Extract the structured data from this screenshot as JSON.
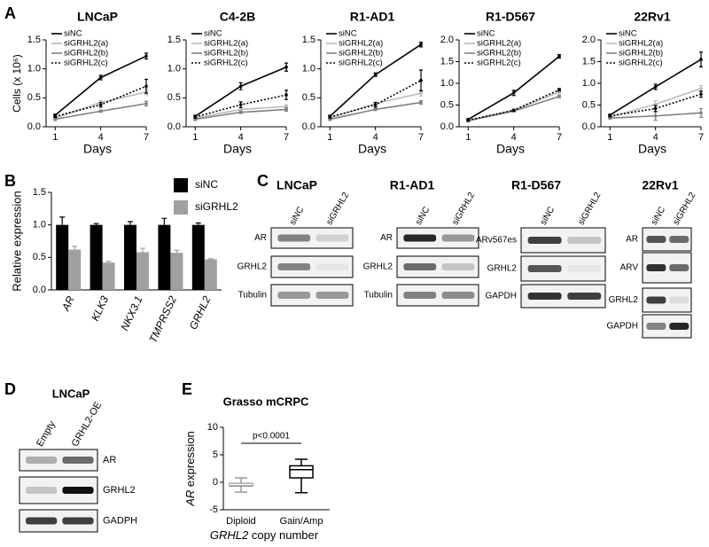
{
  "panel_labels": [
    "A",
    "B",
    "C",
    "D",
    "E"
  ],
  "chart_data": [
    {
      "type": "line",
      "title": "LNCaP",
      "ylabel": "Cells (x 10⁶)",
      "xlabel": "Days",
      "x": [
        1,
        4,
        7
      ],
      "xlim": [
        0.4,
        7
      ],
      "xticks": [
        1,
        4,
        7
      ],
      "ylim": [
        0,
        1.5
      ],
      "yticks": [
        {
          "value": 0,
          "label": "0.0"
        },
        {
          "value": 0.5,
          "label": "0.5"
        },
        {
          "value": 1,
          "label": "1.0"
        },
        {
          "value": 1.5,
          "label": "1.5"
        }
      ],
      "series": [
        {
          "name": "siNC",
          "color": "#000000",
          "style": "solid",
          "values": [
            0.2,
            0.85,
            1.22
          ],
          "errors": [
            0.02,
            0.04,
            0.05
          ]
        },
        {
          "name": "siGRHL2(a)",
          "color": "#bbbbbb",
          "style": "solid",
          "values": [
            0.15,
            0.42,
            0.6
          ],
          "errors": [
            0.02,
            0.03,
            0.05
          ]
        },
        {
          "name": "siGRHL2(b)",
          "color": "#808080",
          "style": "solid",
          "values": [
            0.13,
            0.27,
            0.4
          ],
          "errors": [
            0.02,
            0.02,
            0.04
          ]
        },
        {
          "name": "siGRHL2(c)",
          "color": "#000000",
          "style": "dotted",
          "values": [
            0.18,
            0.38,
            0.7
          ],
          "errors": [
            0.02,
            0.04,
            0.12
          ]
        }
      ]
    },
    {
      "type": "line",
      "title": "C4-2B",
      "xlabel": "Days",
      "x": [
        1,
        4,
        7
      ],
      "xlim": [
        0.4,
        7
      ],
      "xticks": [
        1,
        4,
        7
      ],
      "ylim": [
        0,
        1.5
      ],
      "yticks": [
        {
          "value": 0,
          "label": "0.0"
        },
        {
          "value": 0.5,
          "label": "0.5"
        },
        {
          "value": 1,
          "label": "1.0"
        },
        {
          "value": 1.5,
          "label": "1.5"
        }
      ],
      "series": [
        {
          "name": "siNC",
          "color": "#000000",
          "style": "solid",
          "values": [
            0.18,
            0.7,
            1.03
          ],
          "errors": [
            0.02,
            0.06,
            0.07
          ]
        },
        {
          "name": "siGRHL2(a)",
          "color": "#bbbbbb",
          "style": "solid",
          "values": [
            0.15,
            0.3,
            0.35
          ],
          "errors": [
            0.02,
            0.03,
            0.03
          ]
        },
        {
          "name": "siGRHL2(b)",
          "color": "#808080",
          "style": "solid",
          "values": [
            0.13,
            0.25,
            0.3
          ],
          "errors": [
            0.02,
            0.02,
            0.03
          ]
        },
        {
          "name": "siGRHL2(c)",
          "color": "#000000",
          "style": "dotted",
          "values": [
            0.17,
            0.38,
            0.55
          ],
          "errors": [
            0.02,
            0.05,
            0.08
          ]
        }
      ]
    },
    {
      "type": "line",
      "title": "R1-AD1",
      "xlabel": "Days",
      "x": [
        1,
        4,
        7
      ],
      "xlim": [
        0.4,
        7
      ],
      "xticks": [
        1,
        4,
        7
      ],
      "ylim": [
        0,
        1.5
      ],
      "yticks": [
        {
          "value": 0,
          "label": "0.0"
        },
        {
          "value": 0.5,
          "label": "0.5"
        },
        {
          "value": 1,
          "label": "1.0"
        },
        {
          "value": 1.5,
          "label": "1.5"
        }
      ],
      "series": [
        {
          "name": "siNC",
          "color": "#000000",
          "style": "solid",
          "values": [
            0.18,
            0.9,
            1.42
          ],
          "errors": [
            0.02,
            0.03,
            0.04
          ]
        },
        {
          "name": "siGRHL2(a)",
          "color": "#bbbbbb",
          "style": "solid",
          "values": [
            0.15,
            0.4,
            0.58
          ],
          "errors": [
            0.02,
            0.03,
            0.05
          ]
        },
        {
          "name": "siGRHL2(b)",
          "color": "#808080",
          "style": "solid",
          "values": [
            0.13,
            0.3,
            0.42
          ],
          "errors": [
            0.02,
            0.02,
            0.03
          ]
        },
        {
          "name": "siGRHL2(c)",
          "color": "#000000",
          "style": "dotted",
          "values": [
            0.17,
            0.38,
            0.8
          ],
          "errors": [
            0.02,
            0.04,
            0.18
          ]
        }
      ]
    },
    {
      "type": "line",
      "title": "R1-D567",
      "xlabel": "Days",
      "x": [
        1,
        4,
        7
      ],
      "xlim": [
        0.4,
        7
      ],
      "xticks": [
        1,
        4,
        7
      ],
      "ylim": [
        0,
        2
      ],
      "yticks": [
        {
          "value": 0,
          "label": "0.0"
        },
        {
          "value": 0.5,
          "label": "0.5"
        },
        {
          "value": 1,
          "label": "1.0"
        },
        {
          "value": 1.5,
          "label": "1.5"
        },
        {
          "value": 2,
          "label": "2.0"
        }
      ],
      "series": [
        {
          "name": "siNC",
          "color": "#000000",
          "style": "solid",
          "values": [
            0.17,
            0.78,
            1.62
          ],
          "errors": [
            0.02,
            0.06,
            0.04
          ]
        },
        {
          "name": "siGRHL2(a)",
          "color": "#bbbbbb",
          "style": "solid",
          "values": [
            0.15,
            0.38,
            0.8
          ],
          "errors": [
            0.02,
            0.02,
            0.03
          ]
        },
        {
          "name": "siGRHL2(b)",
          "color": "#808080",
          "style": "solid",
          "values": [
            0.14,
            0.36,
            0.7
          ],
          "errors": [
            0.02,
            0.02,
            0.03
          ]
        },
        {
          "name": "siGRHL2(c)",
          "color": "#000000",
          "style": "dotted",
          "values": [
            0.15,
            0.38,
            0.85
          ],
          "errors": [
            0.02,
            0.02,
            0.03
          ]
        }
      ]
    },
    {
      "type": "line",
      "title": "22Rv1",
      "xlabel": "Days",
      "x": [
        1,
        4,
        7
      ],
      "xlim": [
        0.4,
        7
      ],
      "xticks": [
        1,
        4,
        7
      ],
      "ylim": [
        0,
        2
      ],
      "yticks": [
        {
          "value": 0,
          "label": "0.0"
        },
        {
          "value": 0.5,
          "label": "0.5"
        },
        {
          "value": 1,
          "label": "1.0"
        },
        {
          "value": 1.5,
          "label": "1.5"
        },
        {
          "value": 2,
          "label": "2.0"
        }
      ],
      "series": [
        {
          "name": "siNC",
          "color": "#000000",
          "style": "solid",
          "values": [
            0.27,
            0.92,
            1.55
          ],
          "errors": [
            0.02,
            0.06,
            0.17
          ]
        },
        {
          "name": "siGRHL2(a)",
          "color": "#bbbbbb",
          "style": "solid",
          "values": [
            0.22,
            0.52,
            0.88
          ],
          "errors": [
            0.02,
            0.08,
            0.07
          ]
        },
        {
          "name": "siGRHL2(b)",
          "color": "#808080",
          "style": "solid",
          "values": [
            0.2,
            0.25,
            0.32
          ],
          "errors": [
            0.02,
            0.1,
            0.1
          ]
        },
        {
          "name": "siGRHL2(c)",
          "color": "#000000",
          "style": "dotted",
          "values": [
            0.25,
            0.42,
            0.75
          ],
          "errors": [
            0.02,
            0.07,
            0.07
          ]
        }
      ]
    },
    {
      "type": "bar",
      "ylabel": "Relative expression",
      "categories": [
        "AR",
        "KLK3",
        "NKX3.1",
        "TMPRSS2",
        "GRHL2"
      ],
      "ylim": [
        0,
        1.5
      ],
      "yticks": [
        {
          "value": 0,
          "label": "0.0"
        },
        {
          "value": 0.5,
          "label": "0.5"
        },
        {
          "value": 1,
          "label": "1.0"
        },
        {
          "value": 1.5,
          "label": "1.5"
        }
      ],
      "series": [
        {
          "name": "siNC",
          "color": "#000000",
          "values": [
            1,
            1,
            1,
            1,
            1
          ],
          "errors": [
            0.12,
            0.02,
            0.05,
            0.1,
            0.03
          ]
        },
        {
          "name": "siGRHL2",
          "color": "#a0a0a0",
          "values": [
            0.62,
            0.42,
            0.58,
            0.57,
            0.47
          ],
          "errors": [
            0.05,
            0.02,
            0.06,
            0.04,
            0.01
          ]
        }
      ]
    },
    {
      "type": "box",
      "title": "Grasso mCRPC",
      "ylabel": [
        "AR",
        "expression"
      ],
      "xlabel": [
        "GRHL2",
        "copy number"
      ],
      "annotation": "p<0.0001",
      "categories": [
        "Diploid",
        "Gain/Amp"
      ],
      "colors": [
        "#999999",
        "#000000"
      ],
      "ylim": [
        -5,
        10
      ],
      "yticks": [
        -5,
        0,
        5,
        10
      ],
      "boxes": [
        {
          "min": -1.8,
          "q1": -0.7,
          "median": -0.4,
          "q3": -0.2,
          "max": 0.8
        },
        {
          "min": -1.9,
          "q1": 0.8,
          "median": 2.3,
          "q3": 3.0,
          "max": 4.2
        }
      ]
    }
  ],
  "blots": [
    {
      "title": "LNCaP",
      "lanes": [
        "siNC",
        "siGRHL2"
      ],
      "rows": [
        "AR",
        "GRHL2",
        "Tubulin"
      ]
    },
    {
      "title": "R1-AD1",
      "lanes": [
        "siNC",
        "siGRHL2"
      ],
      "rows": [
        "AR",
        "GRHL2",
        "Tubulin"
      ]
    },
    {
      "title": "R1-D567",
      "lanes": [
        "siNC",
        "siGRHL2"
      ],
      "rows": [
        "ARv567es",
        "GRHL2",
        "GAPDH"
      ]
    },
    {
      "title": "22Rv1",
      "lanes": [
        "siNC",
        "siGRHL2"
      ],
      "rows": [
        "AR",
        "ARV",
        "GRHL2",
        "GAPDH"
      ]
    },
    {
      "title": "LNCaP",
      "lanes": [
        "Empty",
        "GRHL2-OE"
      ],
      "rows": [
        "AR",
        "GRHL2",
        "GADPH"
      ]
    }
  ]
}
